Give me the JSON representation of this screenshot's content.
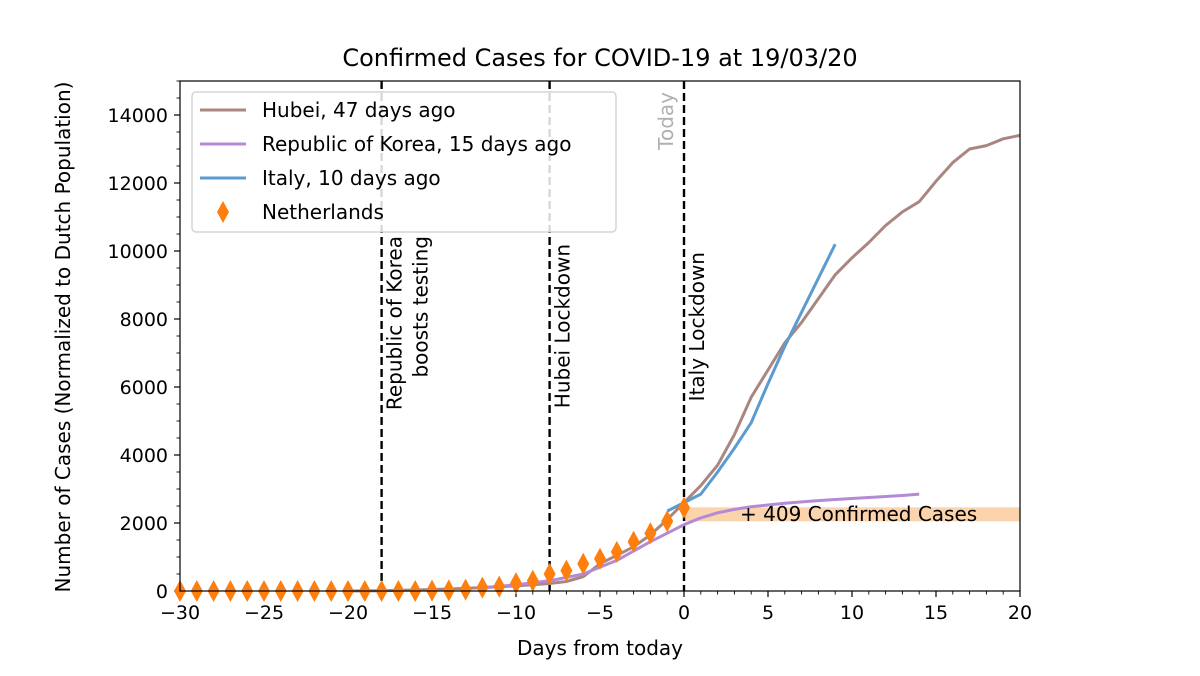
{
  "chart_data": {
    "type": "line",
    "title": "Confirmed Cases for COVID-19 at 19/03/20",
    "xlabel": "Days from today",
    "ylabel": "Number of Cases (Normalized to Dutch Population)",
    "xlim": [
      -30,
      20
    ],
    "ylim": [
      0,
      15000
    ],
    "xticks": [
      -30,
      -25,
      -20,
      -15,
      -10,
      -5,
      0,
      5,
      10,
      15,
      20
    ],
    "xtick_labels": [
      "−30",
      "−25",
      "−20",
      "−15",
      "−10",
      "−5",
      "0",
      "5",
      "10",
      "15",
      "20"
    ],
    "yticks": [
      0,
      2000,
      4000,
      6000,
      8000,
      10000,
      12000,
      14000
    ],
    "ytick_labels": [
      "0",
      "2000",
      "4000",
      "6000",
      "8000",
      "10000",
      "12000",
      "14000"
    ],
    "grid": false,
    "legend_position": "top-left",
    "series": [
      {
        "name": "Hubei, 47 days ago",
        "color": "#a98780",
        "style": "line",
        "points": [
          [
            -20,
            0
          ],
          [
            -18,
            10
          ],
          [
            -16,
            30
          ],
          [
            -14,
            60
          ],
          [
            -12,
            100
          ],
          [
            -10,
            150
          ],
          [
            -8,
            220
          ],
          [
            -7,
            280
          ],
          [
            -6,
            420
          ],
          [
            -5,
            800
          ],
          [
            -4,
            1050
          ],
          [
            -3,
            1300
          ],
          [
            -2,
            1650
          ],
          [
            -1,
            2100
          ],
          [
            0,
            2600
          ],
          [
            1,
            3100
          ],
          [
            2,
            3700
          ],
          [
            3,
            4600
          ],
          [
            4,
            5700
          ],
          [
            5,
            6500
          ],
          [
            6,
            7300
          ],
          [
            7,
            7900
          ],
          [
            8,
            8600
          ],
          [
            9,
            9300
          ],
          [
            10,
            9800
          ],
          [
            11,
            10250
          ],
          [
            12,
            10750
          ],
          [
            13,
            11150
          ],
          [
            14,
            11450
          ],
          [
            15,
            12050
          ],
          [
            16,
            12600
          ],
          [
            17,
            13000
          ],
          [
            18,
            13100
          ],
          [
            19,
            13300
          ],
          [
            20,
            13400
          ]
        ]
      },
      {
        "name": "Republic of Korea, 15 days ago",
        "color": "#b48ad4",
        "style": "line",
        "points": [
          [
            -12,
            100
          ],
          [
            -10,
            180
          ],
          [
            -8,
            300
          ],
          [
            -6,
            500
          ],
          [
            -4,
            900
          ],
          [
            -2,
            1450
          ],
          [
            0,
            1950
          ],
          [
            1,
            2150
          ],
          [
            2,
            2300
          ],
          [
            3,
            2400
          ],
          [
            4,
            2480
          ],
          [
            5,
            2530
          ],
          [
            6,
            2580
          ],
          [
            7,
            2620
          ],
          [
            8,
            2660
          ],
          [
            9,
            2690
          ],
          [
            10,
            2720
          ],
          [
            11,
            2750
          ],
          [
            12,
            2780
          ],
          [
            13,
            2810
          ],
          [
            14,
            2850
          ]
        ]
      },
      {
        "name": "Italy, 10 days ago",
        "color": "#5b9bd0",
        "style": "line",
        "points": [
          [
            -1,
            2350
          ],
          [
            0,
            2600
          ],
          [
            1,
            2850
          ],
          [
            2,
            3500
          ],
          [
            3,
            4200
          ],
          [
            4,
            4950
          ],
          [
            5,
            6100
          ],
          [
            6,
            7200
          ],
          [
            7,
            8200
          ],
          [
            8,
            9200
          ],
          [
            9,
            10200
          ]
        ]
      },
      {
        "name": "Netherlands",
        "color": "#ff7f0e",
        "style": "diamond",
        "points": [
          [
            -30,
            0
          ],
          [
            -29,
            0
          ],
          [
            -28,
            0
          ],
          [
            -27,
            0
          ],
          [
            -26,
            0
          ],
          [
            -25,
            0
          ],
          [
            -24,
            0
          ],
          [
            -23,
            0
          ],
          [
            -22,
            0
          ],
          [
            -21,
            0
          ],
          [
            -20,
            0
          ],
          [
            -19,
            0
          ],
          [
            -18,
            0
          ],
          [
            -17,
            0
          ],
          [
            -16,
            0
          ],
          [
            -15,
            10
          ],
          [
            -14,
            20
          ],
          [
            -13,
            40
          ],
          [
            -12,
            100
          ],
          [
            -11,
            130
          ],
          [
            -10,
            230
          ],
          [
            -9,
            300
          ],
          [
            -8,
            500
          ],
          [
            -7,
            600
          ],
          [
            -6,
            800
          ],
          [
            -5,
            950
          ],
          [
            -4,
            1150
          ],
          [
            -3,
            1450
          ],
          [
            -2,
            1700
          ],
          [
            -1,
            2050
          ],
          [
            0,
            2450
          ]
        ]
      }
    ],
    "vertical_lines": [
      {
        "x": -18,
        "label": "Republic of Korea\nboosts testing",
        "style": "dashed"
      },
      {
        "x": -8,
        "label": "Hubei Lockdown",
        "style": "dashed"
      },
      {
        "x": 0,
        "label": "Italy Lockdown",
        "style": "dashed"
      }
    ],
    "today_label": "Today",
    "band": {
      "y_low": 2050,
      "y_high": 2460,
      "x_from": 0,
      "x_to": 20,
      "color": "#fbd3ad"
    },
    "band_annotation": "+ 409 Confirmed Cases"
  }
}
